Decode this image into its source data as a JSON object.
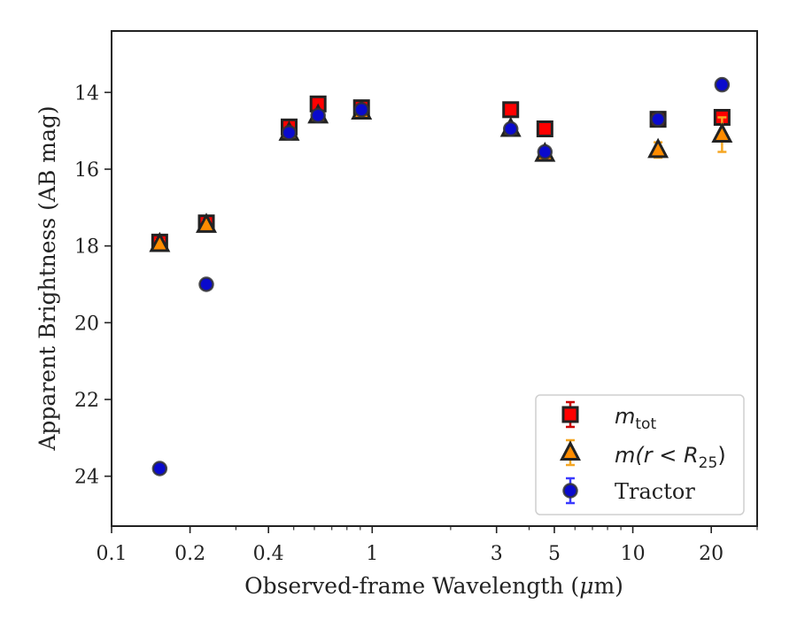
{
  "chart_data": {
    "type": "scatter",
    "xlabel_prefix": "Observed-frame Wavelength (",
    "xlabel_unit_mu": "μ",
    "xlabel_unit_rest": "m)",
    "ylabel": "Apparent Brightness (AB mag)",
    "x_scale": "log",
    "xlim": [
      0.1,
      30
    ],
    "ylim": [
      25.3,
      12.4
    ],
    "y_inverted": true,
    "x_ticks": [
      0.1,
      0.2,
      0.4,
      1,
      3,
      5,
      10,
      20
    ],
    "x_tick_labels": [
      "0.1",
      "0.2",
      "0.4",
      "1",
      "3",
      "5",
      "10",
      "20"
    ],
    "y_ticks": [
      14,
      16,
      18,
      20,
      22,
      24
    ],
    "y_tick_labels": [
      "14",
      "16",
      "18",
      "20",
      "22",
      "24"
    ],
    "grid": false,
    "legend_position": "bottom-right",
    "series": [
      {
        "key": "mtot",
        "marker": "square",
        "face_color": "#ff0000",
        "edge_color": "#222222",
        "error_color": "#cc0000",
        "legend_base": "m",
        "legend_sub": "tot",
        "points": [
          {
            "x": 0.153,
            "y": 17.9,
            "err": 0.12
          },
          {
            "x": 0.231,
            "y": 17.4,
            "err": 0.12
          },
          {
            "x": 0.48,
            "y": 14.9,
            "err": 0.1
          },
          {
            "x": 0.62,
            "y": 14.3,
            "err": 0.1
          },
          {
            "x": 0.91,
            "y": 14.4,
            "err": 0.08
          },
          {
            "x": 3.4,
            "y": 14.45,
            "err": 0.08
          },
          {
            "x": 4.6,
            "y": 14.95,
            "err": 0.08
          },
          {
            "x": 12.5,
            "y": 14.7,
            "err": 0.08
          },
          {
            "x": 22.0,
            "y": 14.65,
            "err": 0.08
          }
        ]
      },
      {
        "key": "mr25",
        "marker": "triangle",
        "face_color": "#ff8c00",
        "edge_color": "#222222",
        "error_color": "#f5a623",
        "legend_base": "m",
        "legend_mid": "(r < R",
        "legend_sub": "25",
        "legend_close": ")",
        "points": [
          {
            "x": 0.153,
            "y": 17.95,
            "err": 0.1
          },
          {
            "x": 0.231,
            "y": 17.45,
            "err": 0.1
          },
          {
            "x": 0.48,
            "y": 15.05,
            "err": 0.08
          },
          {
            "x": 0.62,
            "y": 14.6,
            "err": 0.08
          },
          {
            "x": 0.91,
            "y": 14.5,
            "err": 0.08
          },
          {
            "x": 3.4,
            "y": 14.95,
            "err": 0.08
          },
          {
            "x": 4.6,
            "y": 15.6,
            "err": 0.08
          },
          {
            "x": 12.5,
            "y": 15.5,
            "err": 0.2
          },
          {
            "x": 22.0,
            "y": 15.1,
            "err": 0.45
          }
        ]
      },
      {
        "key": "tractor",
        "marker": "circle",
        "face_color": "#0a0acd",
        "edge_color": "#333333",
        "error_color": "#3a3aff",
        "legend_base": "Tractor",
        "points": [
          {
            "x": 0.153,
            "y": 23.8,
            "err": 0.08
          },
          {
            "x": 0.231,
            "y": 19.0,
            "err": 0.06
          },
          {
            "x": 0.48,
            "y": 15.05,
            "err": 0.05
          },
          {
            "x": 0.62,
            "y": 14.6,
            "err": 0.05
          },
          {
            "x": 0.91,
            "y": 14.45,
            "err": 0.05
          },
          {
            "x": 3.4,
            "y": 14.95,
            "err": 0.05
          },
          {
            "x": 4.6,
            "y": 15.55,
            "err": 0.05
          },
          {
            "x": 12.5,
            "y": 14.7,
            "err": 0.05
          },
          {
            "x": 22.0,
            "y": 13.8,
            "err": 0.05
          }
        ]
      }
    ]
  }
}
